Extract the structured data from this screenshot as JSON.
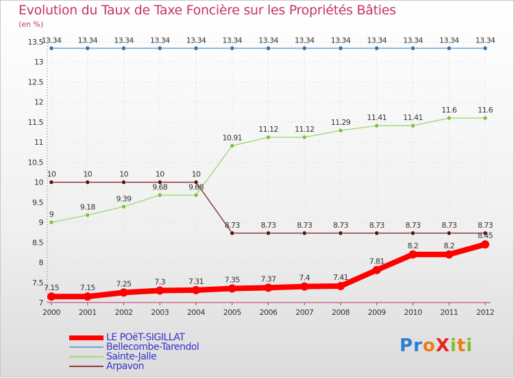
{
  "title": "Evolution du Taux de Taxe Foncière sur les Propriétés Bâties",
  "unit_label": "(en %)",
  "logo": {
    "text": "ProXiti",
    "letters": [
      "P",
      "r",
      "o",
      "X",
      "i",
      "t",
      "i"
    ],
    "colors": [
      "#2a7fd4",
      "#2a7fd4",
      "#f07a12",
      "#e8231f",
      "#7fbf2a",
      "#f07a12",
      "#7fbf2a"
    ]
  },
  "chart_data": {
    "type": "line",
    "title": "Evolution du Taux de Taxe Foncière sur les Propriétés Bâties",
    "ylabel": "(en %)",
    "xlabel": "",
    "ylim": [
      7,
      13.5
    ],
    "yticks": [
      "7",
      "7.5",
      "8",
      "8.5",
      "9",
      "9.5",
      "10",
      "10.5",
      "11",
      "11.5",
      "12",
      "12.5",
      "13",
      "13.5"
    ],
    "x": [
      "2000",
      "2001",
      "2002",
      "2003",
      "2004",
      "2005",
      "2006",
      "2007",
      "2008",
      "2009",
      "2010",
      "2011",
      "2012"
    ],
    "grid": true,
    "legend_position": "bottom-left",
    "series": [
      {
        "name": "Bellecombe-Tarendol",
        "color": "#6fa3d4",
        "marker": "#2e6fb5",
        "values": [
          13.34,
          13.34,
          13.34,
          13.34,
          13.34,
          13.34,
          13.34,
          13.34,
          13.34,
          13.34,
          13.34,
          13.34,
          13.34
        ],
        "labels": [
          "13.34",
          "13.34",
          "13.34",
          "13.34",
          "13.34",
          "13.34",
          "13.34",
          "13.34",
          "13.34",
          "13.34",
          "13.34",
          "13.34",
          "13.34"
        ]
      },
      {
        "name": "Sainte-Jalle",
        "color": "#a8d878",
        "marker": "#7cc040",
        "values": [
          9,
          9.18,
          9.39,
          9.68,
          9.68,
          10.91,
          11.12,
          11.12,
          11.29,
          11.41,
          11.41,
          11.6,
          11.6
        ],
        "labels": [
          "9",
          "9.18",
          "9.39",
          "9.68",
          "9.68",
          "10.91",
          "11.12",
          "11.12",
          "11.29",
          "11.41",
          "11.41",
          "11.6",
          "11.6"
        ]
      },
      {
        "name": "Arpavon",
        "color": "#8b3a3a",
        "marker": "#5a1010",
        "values": [
          10,
          10,
          10,
          10,
          10,
          8.73,
          8.73,
          8.73,
          8.73,
          8.73,
          8.73,
          8.73,
          8.73
        ],
        "labels": [
          "10",
          "10",
          "10",
          "10",
          "10",
          "8.73",
          "8.73",
          "8.73",
          "8.73",
          "8.73",
          "8.73",
          "8.73",
          "8.73"
        ]
      },
      {
        "name": "LE POëT-SIGILLAT",
        "color": "#ff0000",
        "marker": "#ff0000",
        "values": [
          7.15,
          7.15,
          7.25,
          7.3,
          7.31,
          7.35,
          7.37,
          7.4,
          7.41,
          7.81,
          8.2,
          8.2,
          8.45
        ],
        "labels": [
          "7.15",
          "7.15",
          "7.25",
          "7.3",
          "7.31",
          "7.35",
          "7.37",
          "7.4",
          "7.41",
          "7.81",
          "8.2",
          "8.2",
          "8.45"
        ]
      }
    ],
    "legend": [
      {
        "name": "LE POëT-SIGILLAT",
        "color": "#ff0000"
      },
      {
        "name": "Bellecombe-Tarendol",
        "color": "#6fa3d4"
      },
      {
        "name": "Sainte-Jalle",
        "color": "#a8d878"
      },
      {
        "name": "Arpavon",
        "color": "#8b3a3a"
      }
    ]
  }
}
